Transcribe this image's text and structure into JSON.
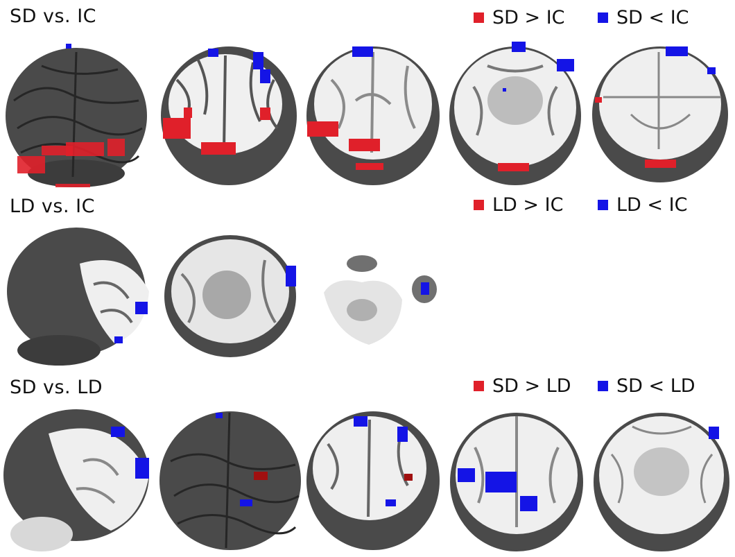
{
  "colors": {
    "increase": "#e0202a",
    "decrease": "#1414e6",
    "cortex": "#555555",
    "sulcus": "#2a2a2a",
    "white_matter": "#efefef"
  },
  "panels": [
    {
      "title": "SD vs. IC",
      "legend": [
        {
          "label": "SD > IC",
          "color": "#e0202a"
        },
        {
          "label": "SD < IC",
          "color": "#1414e6"
        }
      ],
      "views": [
        {
          "name": "surface-rear",
          "slice": false
        },
        {
          "name": "axial-cut-high",
          "slice": true
        },
        {
          "name": "axial-cut-mid",
          "slice": true
        },
        {
          "name": "axial-cut-low",
          "slice": true
        },
        {
          "name": "axial-cut-lowest",
          "slice": true
        }
      ]
    },
    {
      "title": "LD vs. IC",
      "legend": [
        {
          "label": "LD > IC",
          "color": "#e0202a"
        },
        {
          "label": "LD < IC",
          "color": "#1414e6"
        }
      ],
      "views": [
        {
          "name": "sagittal-cut",
          "slice": true
        },
        {
          "name": "axial-cut-inferior",
          "slice": true
        },
        {
          "name": "axial-cut-fragments",
          "slice": true
        }
      ]
    },
    {
      "title": "SD vs. LD",
      "legend": [
        {
          "label": "SD > LD",
          "color": "#e0202a"
        },
        {
          "label": "SD < LD",
          "color": "#1414e6"
        }
      ],
      "views": [
        {
          "name": "sagittal-cut",
          "slice": true
        },
        {
          "name": "surface-rear",
          "slice": false
        },
        {
          "name": "axial-cut-high",
          "slice": true
        },
        {
          "name": "axial-cut-mid",
          "slice": true
        },
        {
          "name": "axial-cut-low",
          "slice": true
        }
      ]
    }
  ]
}
